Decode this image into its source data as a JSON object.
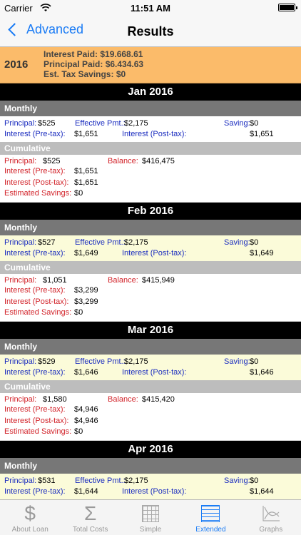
{
  "status": {
    "carrier": "Carrier",
    "time": "11:51 AM"
  },
  "nav": {
    "back_label": "Advanced",
    "title": "Results"
  },
  "year": {
    "label": "2016",
    "interest_paid": "Interest Paid: $19.668.61",
    "principal_paid": "Principal Paid: $6.434.63",
    "tax_savings": "Est. Tax Savings: $0"
  },
  "labels": {
    "monthly": "Monthly",
    "cumulative": "Cumulative",
    "principal": "Principal:",
    "effective_pmt": "Effective Pmt.:",
    "saving": "Saving:",
    "interest_pre": "Interest (Pre-tax):",
    "interest_post": "Interest (Post-tax):",
    "balance": "Balance:",
    "estimated_savings": "Estimated Savings:"
  },
  "months": [
    {
      "name": "Jan 2016",
      "monthly": {
        "principal": "$525",
        "effective_pmt": "$2,175",
        "saving": "$0",
        "interest_pre": "$1,651",
        "interest_post": "$1,651"
      },
      "cumulative": {
        "principal": "$525",
        "balance": "$416,475",
        "interest_pre": "$1,651",
        "interest_post": "$1,651",
        "estimated_savings": "$0"
      }
    },
    {
      "name": "Feb 2016",
      "monthly": {
        "principal": "$527",
        "effective_pmt": "$2,175",
        "saving": "$0",
        "interest_pre": "$1,649",
        "interest_post": "$1,649"
      },
      "cumulative": {
        "principal": "$1,051",
        "balance": "$415,949",
        "interest_pre": "$3,299",
        "interest_post": "$3,299",
        "estimated_savings": "$0"
      }
    },
    {
      "name": "Mar 2016",
      "monthly": {
        "principal": "$529",
        "effective_pmt": "$2,175",
        "saving": "$0",
        "interest_pre": "$1,646",
        "interest_post": "$1,646"
      },
      "cumulative": {
        "principal": "$1,580",
        "balance": "$415,420",
        "interest_pre": "$4,946",
        "interest_post": "$4,946",
        "estimated_savings": "$0"
      }
    },
    {
      "name": "Apr 2016",
      "monthly": {
        "principal": "$531",
        "effective_pmt": "$2,175",
        "saving": "$0",
        "interest_pre": "$1,644",
        "interest_post": "$1,644"
      }
    }
  ],
  "tabs": [
    {
      "label": "About Loan",
      "icon": "dollar-icon"
    },
    {
      "label": "Total Costs",
      "icon": "sigma-icon"
    },
    {
      "label": "Simple",
      "icon": "grid-icon"
    },
    {
      "label": "Extended",
      "icon": "list-icon",
      "active": true
    },
    {
      "label": "Graphs",
      "icon": "graph-icon"
    }
  ],
  "colors": {
    "accent": "#1b7cf5",
    "year_bar": "#fbbb6a",
    "label_blue": "#1a2cbf",
    "label_red": "#d2232a"
  }
}
